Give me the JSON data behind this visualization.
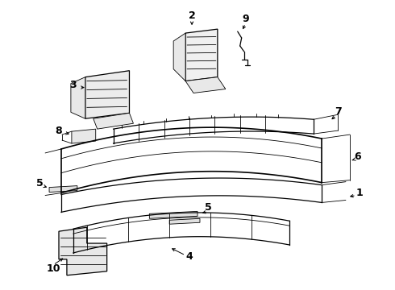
{
  "bg_color": "#ffffff",
  "line_color": "#000000",
  "label_fontsize": 9,
  "figsize": [
    4.9,
    3.6
  ],
  "dpi": 100
}
